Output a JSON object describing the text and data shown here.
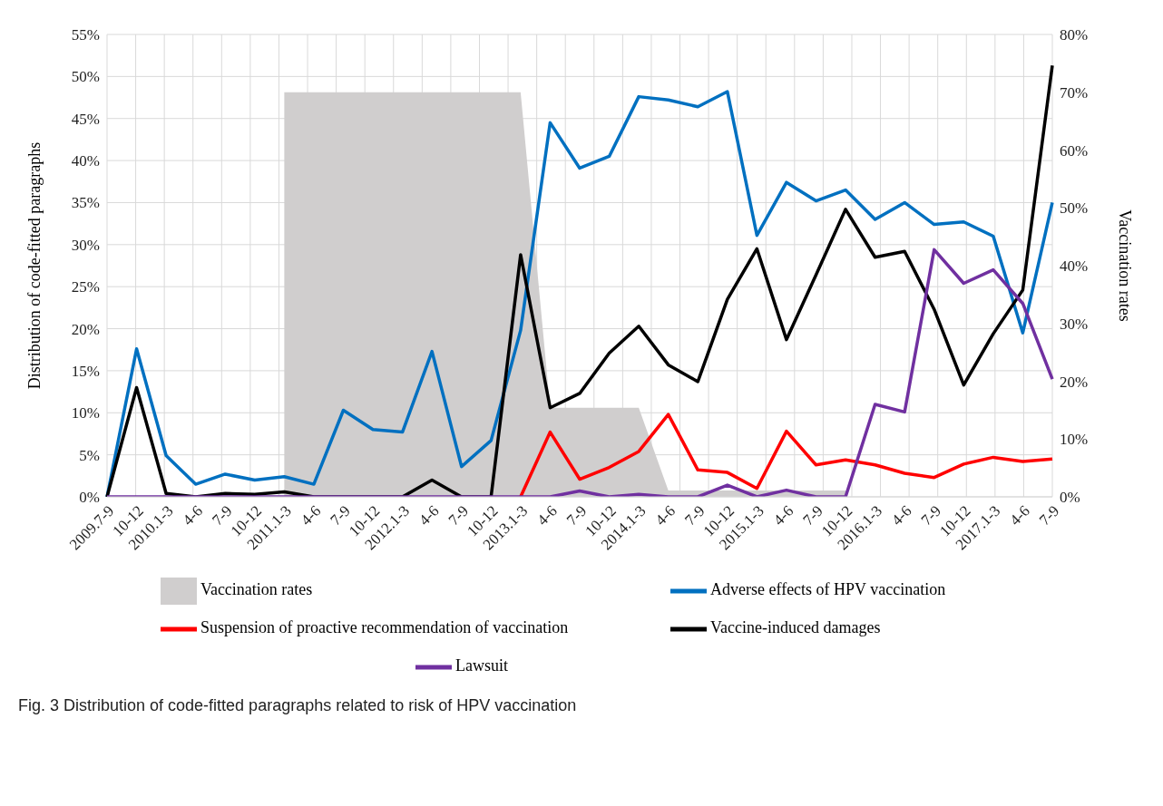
{
  "chart_data": {
    "type": "line",
    "ylabel": "Distribution of code-fitted paragraphs",
    "y2label": "Vaccination rates",
    "annotations": [
      "Fig. 3 Distribution of code-fitted paragraphs related to risk of HPV vaccination"
    ],
    "categories": [
      "2009.7-9",
      "10-12",
      "2010.1-3",
      "4-6",
      "7-9",
      "10-12",
      "2011.1-3",
      "4-6",
      "7-9",
      "10-12",
      "2012.1-3",
      "4-6",
      "7-9",
      "10-12",
      "2013.1-3",
      "4-6",
      "7-9",
      "10-12",
      "2014.1-3",
      "4-6",
      "7-9",
      "10-12",
      "2015.1-3",
      "4-6",
      "7-9",
      "10-12",
      "2016.1-3",
      "4-6",
      "7-9",
      "10-12",
      "2017.1-3",
      "4-6",
      "7-9"
    ],
    "series": [
      {
        "name": "Vaccination rates",
        "type": "area",
        "axis": "y2",
        "color": "#d0cece",
        "values": [
          null,
          null,
          null,
          null,
          null,
          null,
          70,
          70,
          70,
          70,
          70,
          70,
          70,
          70,
          70,
          15.4,
          15.4,
          15.4,
          15.4,
          1.1,
          1.1,
          1.1,
          1.1,
          1.1,
          1.1,
          1.1,
          null,
          null,
          null,
          null,
          null,
          null,
          null
        ]
      },
      {
        "name": "Adverse effects of HPV vaccination",
        "color": "#0070c0",
        "values": [
          0,
          17.6,
          4.9,
          1.5,
          2.7,
          2.0,
          2.4,
          1.5,
          10.3,
          8.0,
          7.7,
          17.3,
          3.6,
          6.7,
          19.8,
          44.5,
          39.1,
          40.5,
          47.6,
          47.2,
          46.4,
          48.2,
          31.1,
          37.4,
          35.2,
          36.5,
          33.0,
          35.0,
          32.4,
          32.7,
          31.0,
          19.5,
          35.0
        ]
      },
      {
        "name": "Suspension of proactive recommendation of vaccination",
        "color": "#ff0000",
        "values": [
          null,
          null,
          null,
          null,
          null,
          null,
          null,
          null,
          null,
          null,
          null,
          null,
          null,
          null,
          0,
          7.7,
          2.1,
          3.5,
          5.4,
          9.8,
          3.2,
          2.9,
          1.0,
          7.8,
          3.8,
          4.4,
          3.8,
          2.8,
          2.3,
          3.9,
          4.7,
          4.2,
          4.5
        ]
      },
      {
        "name": "Vaccine-induced damages",
        "color": "#000000",
        "values": [
          0,
          13.0,
          0.4,
          0,
          0.4,
          0.3,
          0.6,
          0,
          0,
          0,
          0,
          2.0,
          0,
          0,
          28.8,
          10.6,
          12.3,
          17.1,
          20.3,
          15.7,
          13.7,
          23.5,
          29.5,
          18.7,
          26.4,
          34.2,
          28.5,
          29.2,
          22.3,
          13.3,
          19.4,
          24.6,
          51.3
        ]
      },
      {
        "name": "Lawsuit",
        "color": "#7030a0",
        "values": [
          0,
          0,
          0,
          0,
          0,
          0,
          0,
          0,
          0,
          0,
          0,
          0,
          0,
          0,
          0,
          0,
          0.7,
          0,
          0.3,
          0,
          0,
          1.4,
          0,
          0.8,
          0,
          0,
          11.0,
          10.1,
          29.4,
          25.4,
          27.0,
          23.0,
          14.0
        ]
      }
    ],
    "ylim": [
      0,
      55
    ],
    "yticks": [
      {
        "value": 0,
        "label": "0%"
      },
      {
        "value": 5,
        "label": "5%"
      },
      {
        "value": 10,
        "label": "10%"
      },
      {
        "value": 15,
        "label": "15%"
      },
      {
        "value": 20,
        "label": "20%"
      },
      {
        "value": 25,
        "label": "25%"
      },
      {
        "value": 30,
        "label": "30%"
      },
      {
        "value": 35,
        "label": "35%"
      },
      {
        "value": 40,
        "label": "40%"
      },
      {
        "value": 45,
        "label": "45%"
      },
      {
        "value": 50,
        "label": "50%"
      },
      {
        "value": 55,
        "label": "55%"
      }
    ],
    "y2lim": [
      0,
      80
    ],
    "y2ticks": [
      {
        "value": 0,
        "label": "0%"
      },
      {
        "value": 10,
        "label": "10%"
      },
      {
        "value": 20,
        "label": "20%"
      },
      {
        "value": 30,
        "label": "30%"
      },
      {
        "value": 40,
        "label": "40%"
      },
      {
        "value": 50,
        "label": "50%"
      },
      {
        "value": 60,
        "label": "60%"
      },
      {
        "value": 70,
        "label": "70%"
      },
      {
        "value": 80,
        "label": "80%"
      }
    ],
    "grid": true,
    "legend": "bottom",
    "marker": "none",
    "line_style": "solid"
  }
}
